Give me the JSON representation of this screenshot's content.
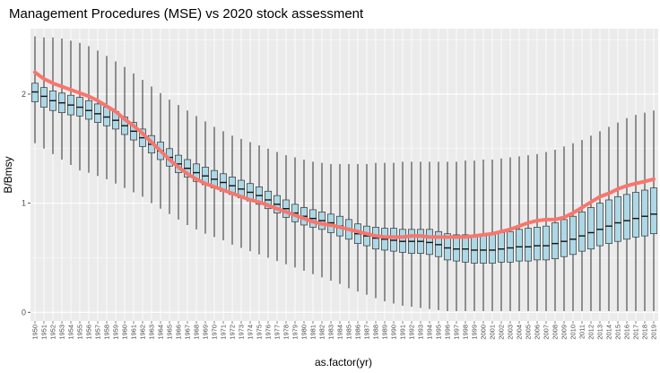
{
  "chart_data": {
    "type": "box",
    "title": "Management Procedures (MSE) vs 2020 stock assessment",
    "xlabel": "as.factor(yr)",
    "ylabel": "B/Bmsy",
    "ylim": [
      -0.08,
      2.6
    ],
    "yticks": [
      0,
      1,
      2
    ],
    "grid": true,
    "panel_color": "#ebebeb",
    "box_fill": "#add8e6",
    "line_color": "#f8766d",
    "years": [
      1950,
      1951,
      1952,
      1953,
      1954,
      1955,
      1956,
      1957,
      1958,
      1959,
      1960,
      1961,
      1962,
      1963,
      1964,
      1965,
      1966,
      1967,
      1968,
      1969,
      1970,
      1971,
      1972,
      1973,
      1974,
      1975,
      1976,
      1977,
      1978,
      1979,
      1980,
      1981,
      1982,
      1983,
      1984,
      1985,
      1986,
      1987,
      1988,
      1989,
      1990,
      1991,
      1992,
      1993,
      1994,
      1995,
      1996,
      1997,
      1998,
      1999,
      2000,
      2001,
      2002,
      2003,
      2004,
      2005,
      2006,
      2007,
      2008,
      2009,
      2010,
      2011,
      2012,
      2013,
      2014,
      2015,
      2016,
      2017,
      2018,
      2019
    ],
    "boxes": {
      "median": [
        2.02,
        1.98,
        1.94,
        1.92,
        1.9,
        1.88,
        1.85,
        1.82,
        1.79,
        1.76,
        1.71,
        1.66,
        1.6,
        1.54,
        1.48,
        1.42,
        1.36,
        1.32,
        1.28,
        1.25,
        1.22,
        1.19,
        1.16,
        1.13,
        1.1,
        1.07,
        1.03,
        0.99,
        0.95,
        0.91,
        0.88,
        0.86,
        0.84,
        0.82,
        0.79,
        0.76,
        0.72,
        0.7,
        0.68,
        0.67,
        0.66,
        0.65,
        0.65,
        0.65,
        0.64,
        0.62,
        0.59,
        0.58,
        0.58,
        0.57,
        0.57,
        0.57,
        0.58,
        0.59,
        0.6,
        0.6,
        0.61,
        0.61,
        0.63,
        0.65,
        0.67,
        0.7,
        0.73,
        0.76,
        0.79,
        0.82,
        0.84,
        0.86,
        0.88,
        0.9
      ],
      "q1": [
        1.93,
        1.88,
        1.85,
        1.83,
        1.81,
        1.8,
        1.77,
        1.74,
        1.71,
        1.68,
        1.63,
        1.58,
        1.52,
        1.46,
        1.4,
        1.34,
        1.28,
        1.24,
        1.2,
        1.17,
        1.14,
        1.11,
        1.08,
        1.05,
        1.02,
        0.99,
        0.95,
        0.91,
        0.87,
        0.83,
        0.8,
        0.78,
        0.76,
        0.73,
        0.7,
        0.67,
        0.63,
        0.61,
        0.58,
        0.57,
        0.56,
        0.55,
        0.54,
        0.54,
        0.53,
        0.51,
        0.48,
        0.47,
        0.46,
        0.45,
        0.45,
        0.45,
        0.46,
        0.46,
        0.47,
        0.47,
        0.48,
        0.48,
        0.49,
        0.51,
        0.53,
        0.56,
        0.58,
        0.61,
        0.63,
        0.65,
        0.67,
        0.69,
        0.7,
        0.72
      ],
      "q3": [
        2.1,
        2.06,
        2.03,
        2.01,
        1.99,
        1.97,
        1.94,
        1.91,
        1.88,
        1.84,
        1.79,
        1.74,
        1.68,
        1.62,
        1.56,
        1.5,
        1.44,
        1.4,
        1.36,
        1.33,
        1.3,
        1.27,
        1.24,
        1.21,
        1.18,
        1.15,
        1.11,
        1.07,
        1.03,
        0.99,
        0.96,
        0.94,
        0.92,
        0.9,
        0.88,
        0.85,
        0.81,
        0.79,
        0.78,
        0.77,
        0.77,
        0.76,
        0.76,
        0.76,
        0.76,
        0.74,
        0.72,
        0.71,
        0.71,
        0.71,
        0.71,
        0.72,
        0.73,
        0.74,
        0.76,
        0.77,
        0.78,
        0.79,
        0.82,
        0.85,
        0.88,
        0.92,
        0.96,
        1.0,
        1.03,
        1.06,
        1.08,
        1.1,
        1.12,
        1.14
      ],
      "min": [
        1.55,
        1.5,
        1.45,
        1.4,
        1.35,
        1.3,
        1.28,
        1.25,
        1.22,
        1.18,
        1.14,
        1.1,
        1.06,
        1.0,
        0.95,
        0.9,
        0.85,
        0.8,
        0.76,
        0.72,
        0.69,
        0.66,
        0.62,
        0.59,
        0.56,
        0.53,
        0.5,
        0.47,
        0.44,
        0.41,
        0.38,
        0.35,
        0.32,
        0.29,
        0.26,
        0.22,
        0.19,
        0.16,
        0.13,
        0.1,
        0.08,
        0.06,
        0.05,
        0.04,
        0.03,
        0.02,
        0.01,
        0.01,
        0.01,
        0.01,
        0.01,
        0.01,
        0.01,
        0.01,
        0.01,
        0.01,
        0.01,
        0.01,
        0.01,
        0.01,
        0.01,
        0.01,
        0.01,
        0.01,
        0.01,
        0.01,
        0.01,
        0.01,
        0.01,
        0.01
      ],
      "max": [
        2.53,
        2.52,
        2.52,
        2.51,
        2.49,
        2.47,
        2.44,
        2.4,
        2.35,
        2.3,
        2.25,
        2.19,
        2.13,
        2.07,
        2.01,
        1.95,
        1.9,
        1.85,
        1.8,
        1.75,
        1.7,
        1.66,
        1.62,
        1.59,
        1.56,
        1.53,
        1.5,
        1.47,
        1.44,
        1.42,
        1.4,
        1.38,
        1.37,
        1.36,
        1.36,
        1.36,
        1.36,
        1.36,
        1.37,
        1.37,
        1.37,
        1.38,
        1.38,
        1.38,
        1.38,
        1.38,
        1.38,
        1.38,
        1.39,
        1.39,
        1.4,
        1.4,
        1.41,
        1.42,
        1.43,
        1.44,
        1.45,
        1.47,
        1.49,
        1.52,
        1.55,
        1.58,
        1.62,
        1.66,
        1.7,
        1.74,
        1.78,
        1.81,
        1.83,
        1.85
      ]
    },
    "assessment_line": [
      2.2,
      2.14,
      2.1,
      2.07,
      2.04,
      2.01,
      1.98,
      1.94,
      1.89,
      1.84,
      1.77,
      1.71,
      1.64,
      1.56,
      1.48,
      1.4,
      1.33,
      1.27,
      1.22,
      1.18,
      1.15,
      1.12,
      1.09,
      1.06,
      1.03,
      1.01,
      0.98,
      0.95,
      0.92,
      0.89,
      0.86,
      0.83,
      0.81,
      0.8,
      0.78,
      0.76,
      0.74,
      0.72,
      0.7,
      0.69,
      0.69,
      0.69,
      0.7,
      0.7,
      0.69,
      0.69,
      0.69,
      0.69,
      0.69,
      0.7,
      0.71,
      0.72,
      0.74,
      0.76,
      0.79,
      0.82,
      0.84,
      0.85,
      0.85,
      0.87,
      0.91,
      0.96,
      1.01,
      1.06,
      1.09,
      1.13,
      1.16,
      1.18,
      1.2,
      1.22
    ]
  }
}
